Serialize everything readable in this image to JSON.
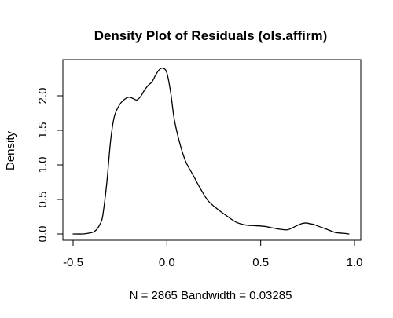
{
  "chart_data": {
    "type": "line",
    "title": "Density Plot of Residuals (ols.affirm)",
    "xlabel": "N = 2865   Bandwidth = 0.03285",
    "ylabel": "Density",
    "xlim": [
      -0.5,
      1.0
    ],
    "ylim": [
      0.0,
      2.4
    ],
    "x_ticks": [
      -0.5,
      0.0,
      0.5,
      1.0
    ],
    "x_tick_labels": [
      "-0.5",
      "0.0",
      "0.5",
      "1.0"
    ],
    "y_ticks": [
      0.0,
      0.5,
      1.0,
      1.5,
      2.0
    ],
    "y_tick_labels": [
      "0.0",
      "0.5",
      "1.0",
      "1.5",
      "2.0"
    ],
    "grid": false,
    "legend": "none",
    "series": [
      {
        "color": "#000000",
        "x": [
          -0.5,
          -0.45,
          -0.42,
          -0.39,
          -0.37,
          -0.35,
          -0.34,
          -0.32,
          -0.3,
          -0.28,
          -0.25,
          -0.22,
          -0.2,
          -0.18,
          -0.16,
          -0.14,
          -0.12,
          -0.1,
          -0.08,
          -0.06,
          -0.04,
          -0.02,
          0.0,
          0.02,
          0.04,
          0.07,
          0.1,
          0.14,
          0.18,
          0.22,
          0.27,
          0.32,
          0.37,
          0.42,
          0.47,
          0.52,
          0.56,
          0.6,
          0.64,
          0.67,
          0.7,
          0.72,
          0.74,
          0.76,
          0.78,
          0.8,
          0.83,
          0.86,
          0.9,
          0.94,
          0.97
        ],
        "y": [
          0.0,
          0.0,
          0.01,
          0.03,
          0.08,
          0.18,
          0.3,
          0.75,
          1.35,
          1.7,
          1.88,
          1.96,
          1.98,
          1.96,
          1.94,
          1.99,
          2.08,
          2.15,
          2.2,
          2.3,
          2.38,
          2.4,
          2.33,
          2.05,
          1.65,
          1.3,
          1.05,
          0.85,
          0.65,
          0.48,
          0.36,
          0.26,
          0.17,
          0.13,
          0.12,
          0.11,
          0.09,
          0.07,
          0.06,
          0.09,
          0.13,
          0.15,
          0.16,
          0.15,
          0.14,
          0.12,
          0.09,
          0.06,
          0.02,
          0.01,
          0.0
        ]
      }
    ]
  }
}
